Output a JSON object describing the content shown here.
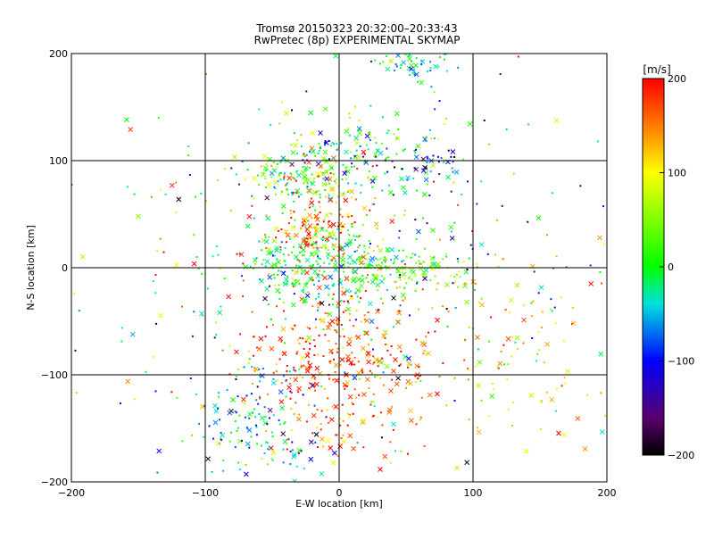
{
  "chart_data": {
    "type": "scatter",
    "title": "Tromsø 20150323 20:32:00–20:33:43",
    "subtitle": "RwPretec (8p) EXPERIMENTAL SKYMAP",
    "xlabel": "E-W location [km]",
    "ylabel": "N-S location [km]",
    "xlim": [
      -200,
      200
    ],
    "ylim": [
      -200,
      200
    ],
    "xticks": [
      -200,
      -100,
      0,
      100,
      200
    ],
    "yticks": [
      -200,
      -100,
      0,
      100,
      200
    ],
    "xtick_labels": [
      "−200",
      "−100",
      "0",
      "100",
      "200"
    ],
    "ytick_labels": [
      "−200",
      "−100",
      "0",
      "100",
      "200"
    ],
    "grid": true,
    "markers": [
      "cross",
      "dot"
    ],
    "colorbar": {
      "label": "[m/s]",
      "range": [
        -200,
        200
      ],
      "ticks": [
        -200,
        -100,
        0,
        100,
        200
      ],
      "tick_labels": [
        "−200",
        "−100",
        "0",
        "100",
        "200"
      ],
      "colormap": "black-purple-blue-cyan-green-yellow-red"
    },
    "clusters_note": "",
    "clusters": [
      {
        "cx": 0,
        "cy": -90,
        "sx": 35,
        "sy": 45,
        "n": 380,
        "vmean": 175,
        "vsd": 40
      },
      {
        "cx": -60,
        "cy": -150,
        "sx": 25,
        "sy": 25,
        "n": 120,
        "vmean": -60,
        "vsd": 50
      },
      {
        "cx": -10,
        "cy": 0,
        "sx": 30,
        "sy": 20,
        "n": 260,
        "vmean": -10,
        "vsd": 35
      },
      {
        "cx": -15,
        "cy": 35,
        "sx": 18,
        "sy": 12,
        "n": 120,
        "vmean": 150,
        "vsd": 60
      },
      {
        "cx": -20,
        "cy": 85,
        "sx": 22,
        "sy": 12,
        "n": 150,
        "vmean": 50,
        "vsd": 80
      },
      {
        "cx": 10,
        "cy": 110,
        "sx": 40,
        "sy": 15,
        "n": 120,
        "vmean": -30,
        "vsd": 60
      },
      {
        "cx": 60,
        "cy": 190,
        "sx": 18,
        "sy": 10,
        "n": 50,
        "vmean": -40,
        "vsd": 40
      },
      {
        "cx": 60,
        "cy": 0,
        "sx": 20,
        "sy": 10,
        "n": 80,
        "vmean": 40,
        "vsd": 30
      },
      {
        "cx": 140,
        "cy": -80,
        "sx": 40,
        "sy": 45,
        "n": 90,
        "vmean": 120,
        "vsd": 50
      },
      {
        "cx": 70,
        "cy": 90,
        "sx": 15,
        "sy": 12,
        "n": 40,
        "vmean": -120,
        "vsd": 80
      },
      {
        "cx": 0,
        "cy": 0,
        "sx": 100,
        "sy": 100,
        "n": 420,
        "vmean": 20,
        "vsd": 110
      }
    ]
  }
}
